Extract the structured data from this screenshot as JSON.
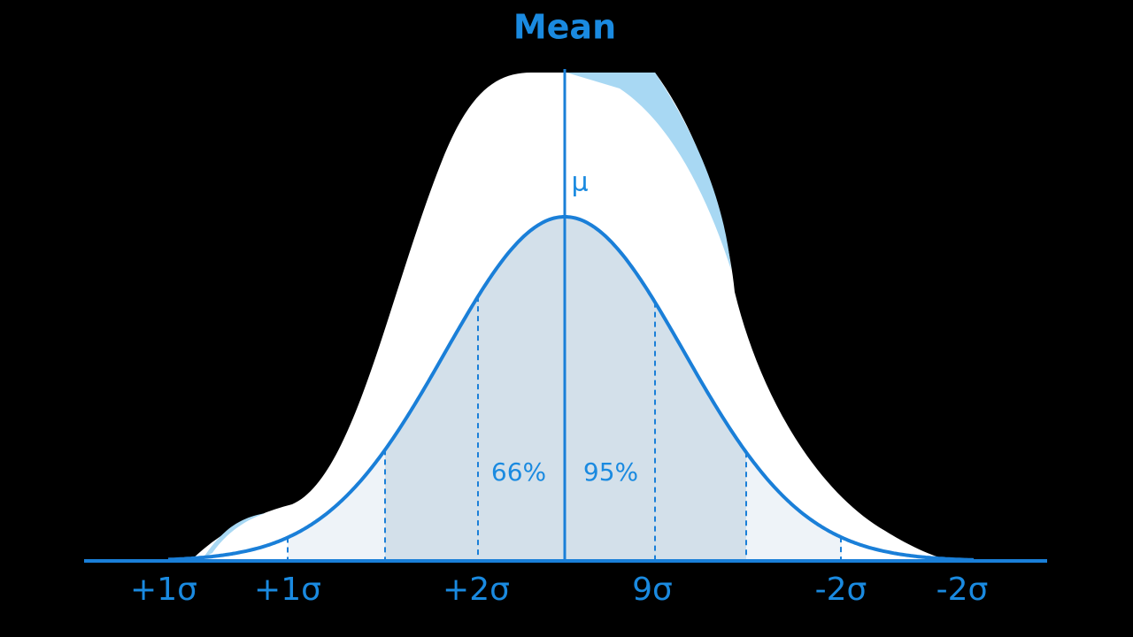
{
  "title": "Mean",
  "mean_symbol": "μ",
  "region_labels": [
    "66%",
    "95%"
  ],
  "axis_labels": [
    "+1σ",
    "+1σ",
    "+2σ",
    "9σ",
    "-2σ",
    "-2σ"
  ]
}
